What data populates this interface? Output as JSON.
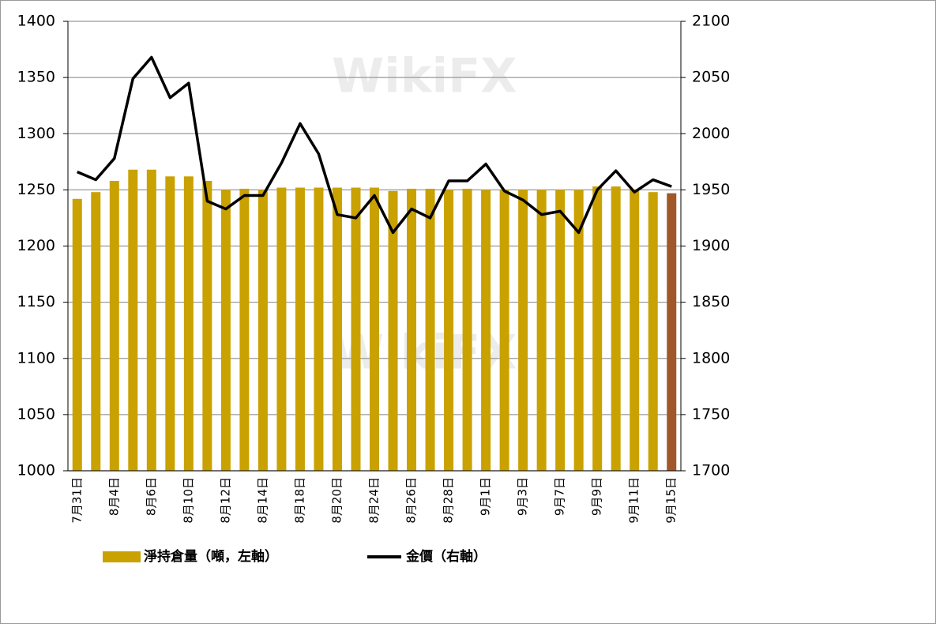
{
  "chart_data": {
    "type": "bar-line",
    "categories": [
      "7月31日",
      null,
      "8月4日",
      null,
      "8月6日",
      null,
      "8月10日",
      null,
      "8月12日",
      null,
      "8月14日",
      null,
      "8月18日",
      null,
      "8月20日",
      null,
      "8月24日",
      null,
      "8月26日",
      null,
      "8月28日",
      null,
      "9月1日",
      null,
      "9月3日",
      null,
      "9月7日",
      null,
      "9月9日",
      null,
      "9月11日",
      null,
      "9月15日"
    ],
    "series": [
      {
        "name": "淨持倉量（噸，左軸）",
        "type": "bar",
        "color": "#c9a100",
        "colors": [
          "#c9a100",
          "#c9a100",
          "#c9a100",
          "#c9a100",
          "#c9a100",
          "#c9a100",
          "#c9a100",
          "#c9a100",
          "#c9a100",
          "#c9a100",
          "#c9a100",
          "#c9a100",
          "#c9a100",
          "#c9a100",
          "#c9a100",
          "#c9a100",
          "#c9a100",
          "#c9a100",
          "#c9a100",
          "#c9a100",
          "#c9a100",
          "#c9a100",
          "#c9a100",
          "#c9a100",
          "#c9a100",
          "#c9a100",
          "#c9a100",
          "#c9a100",
          "#c9a100",
          "#c9a100",
          "#c9a100",
          "#c9a100",
          "#a0582a"
        ],
        "values": [
          1242,
          1248,
          1258,
          1268,
          1268,
          1262,
          1262,
          1258,
          1250,
          1251,
          1250,
          1252,
          1252,
          1252,
          1252,
          1252,
          1252,
          1249,
          1251,
          1251,
          1250,
          1251,
          1250,
          1250,
          1250,
          1250,
          1250,
          1250,
          1253,
          1253,
          1250,
          1248,
          1247
        ]
      },
      {
        "name": "金價（右軸）",
        "type": "line",
        "axis": "y2",
        "color": "#000000",
        "values": [
          1966,
          1959,
          1978,
          2049,
          2068,
          2032,
          2045,
          1940,
          1933,
          1945,
          1945,
          1974,
          2009,
          1982,
          1928,
          1925,
          1945,
          1912,
          1933,
          1925,
          1958,
          1958,
          1973,
          1949,
          1941,
          1928,
          1931,
          1912,
          1950,
          1967,
          1948,
          1959,
          1953
        ]
      }
    ],
    "ylim": [
      1000,
      1400
    ],
    "yticks": [
      1000,
      1050,
      1100,
      1150,
      1200,
      1250,
      1300,
      1350,
      1400
    ],
    "y2lim": [
      1700,
      2100
    ],
    "y2ticks": [
      1700,
      1750,
      1800,
      1850,
      1900,
      1950,
      2000,
      2050,
      2100
    ],
    "grid": true
  }
}
